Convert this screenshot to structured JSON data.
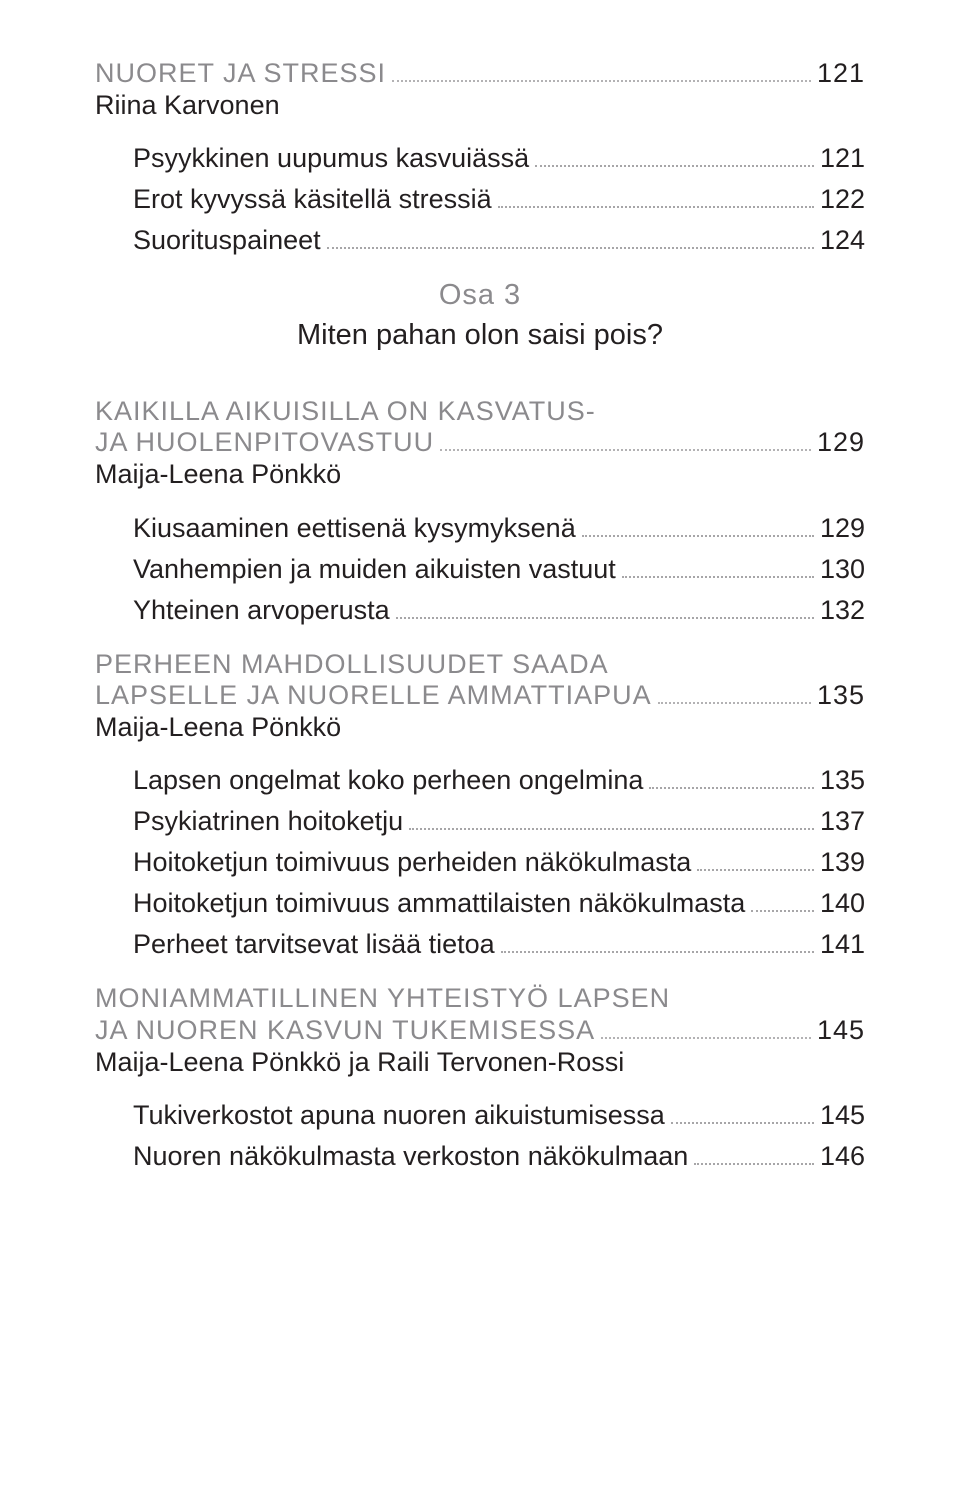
{
  "colors": {
    "background": "#ffffff",
    "text": "#231f20",
    "muted": "#8b8a8d",
    "leader": "#a7a6a8"
  },
  "typography": {
    "body_fontsize_pt": 20,
    "part_fontsize_pt": 22,
    "title_weight": 400,
    "body_weight": 300,
    "font_family": "Myriad Pro / Helvetica Neue"
  },
  "part": {
    "label": "Osa 3",
    "title": "Miten pahan olon saisi pois?"
  },
  "chapters": [
    {
      "title_lines": [
        "NUORET JA STRESSI"
      ],
      "title_page": "121",
      "author": "Riina Karvonen",
      "entries": [
        {
          "label": "Psyykkinen uupumus kasvuiässä",
          "page": "121"
        },
        {
          "label": "Erot kyvyssä käsitellä stressiä",
          "page": "122"
        },
        {
          "label": "Suorituspaineet",
          "page": "124"
        }
      ]
    },
    {
      "title_lines": [
        "KAIKILLA AIKUISILLA ON KASVATUS-",
        "JA HUOLENPITOVASTUU"
      ],
      "title_page": "129",
      "author": "Maija-Leena Pönkkö",
      "entries": [
        {
          "label": "Kiusaaminen eettisenä kysymyksenä",
          "page": "129"
        },
        {
          "label": "Vanhempien ja muiden aikuisten vastuut",
          "page": "130"
        },
        {
          "label": "Yhteinen arvoperusta",
          "page": "132"
        }
      ]
    },
    {
      "title_lines": [
        "PERHEEN MAHDOLLISUUDET SAADA",
        "LAPSELLE JA NUORELLE AMMATTIAPUA"
      ],
      "title_page": "135",
      "author": "Maija-Leena Pönkkö",
      "entries": [
        {
          "label": "Lapsen ongelmat koko perheen ongelmina",
          "page": "135"
        },
        {
          "label": "Psykiatrinen hoitoketju",
          "page": "137"
        },
        {
          "label": "Hoitoketjun toimivuus perheiden näkökulmasta",
          "page": "139"
        },
        {
          "label": "Hoitoketjun toimivuus ammattilaisten näkökulmasta",
          "page": "140"
        },
        {
          "label": "Perheet tarvitsevat lisää tietoa",
          "page": "141"
        }
      ]
    },
    {
      "title_lines": [
        "MONIAMMATILLINEN YHTEISTYÖ LAPSEN",
        "JA NUOREN KASVUN TUKEMISESSA"
      ],
      "title_page": "145",
      "author": "Maija-Leena Pönkkö ja Raili Tervonen-Rossi",
      "entries": [
        {
          "label": "Tukiverkostot apuna nuoren aikuistumisessa",
          "page": "145"
        },
        {
          "label": "Nuoren näkökulmasta verkoston näkökulmaan",
          "page": "146"
        }
      ]
    }
  ]
}
